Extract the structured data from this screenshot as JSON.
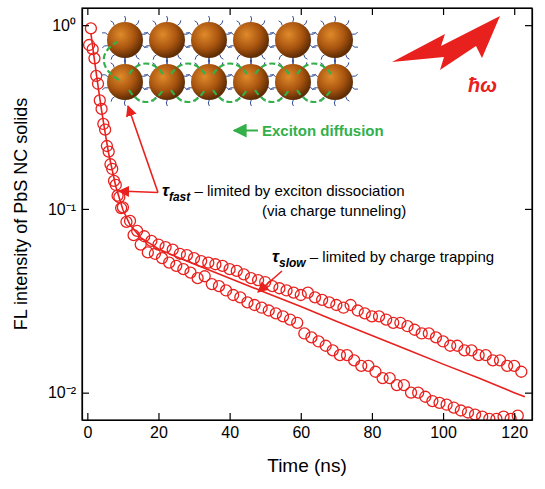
{
  "chart_data": {
    "type": "scatter",
    "x_label": "Time (ns)",
    "y_label": "FL intensity of PbS NC solids",
    "log": "y",
    "grid": false,
    "xlim": [
      -1.5,
      125
    ],
    "ylim": [
      0.0071,
      1.24
    ],
    "xticks": [
      0,
      20,
      40,
      60,
      80,
      100,
      120
    ],
    "yticks": [
      {
        "value": 1,
        "label": "10⁰"
      },
      {
        "value": 0.1,
        "label": "10⁻¹"
      },
      {
        "value": 0.01,
        "label": "10⁻²"
      }
    ],
    "series": [
      {
        "type": "scatter",
        "color": "#e8211e",
        "marker": "circle-open",
        "x": [
          0.5,
          1,
          1.5,
          2,
          2.5,
          3,
          3.5,
          4,
          4.5,
          5,
          5.5,
          6,
          6.5,
          7,
          7.5,
          8,
          8.5,
          9,
          9.5,
          10,
          11,
          12,
          13,
          14,
          15,
          16,
          17,
          18,
          19,
          20,
          21,
          22,
          23,
          24,
          25,
          26,
          27,
          28,
          29,
          30,
          31,
          32,
          33,
          34,
          35,
          36,
          37,
          38,
          39,
          40,
          41,
          42,
          43,
          44,
          45,
          46,
          47,
          48,
          49,
          50,
          51,
          52,
          53,
          54,
          55,
          56,
          57,
          58,
          59,
          60,
          61,
          62,
          63,
          64,
          65,
          66,
          67,
          68,
          69,
          70,
          71,
          72,
          73,
          74,
          75,
          76,
          77,
          78,
          79,
          80,
          81,
          82,
          83,
          84,
          85,
          86,
          87,
          88,
          89,
          90,
          91,
          92,
          93,
          94,
          95,
          96,
          97,
          98,
          99,
          100,
          101,
          102,
          103,
          104,
          105,
          106,
          107,
          108,
          109,
          110,
          111,
          112,
          113,
          114,
          115,
          116,
          117,
          118,
          119,
          120,
          121,
          122
        ],
        "values": [
          0.78,
          0.96,
          0.74,
          0.66,
          0.53,
          0.48,
          0.39,
          0.35,
          0.29,
          0.27,
          0.22,
          0.205,
          0.175,
          0.165,
          0.142,
          0.135,
          0.118,
          0.116,
          0.101,
          0.102,
          0.085,
          0.086,
          0.072,
          0.076,
          0.064,
          0.071,
          0.058,
          0.067,
          0.057,
          0.064,
          0.054,
          0.062,
          0.051,
          0.06,
          0.049,
          0.057,
          0.047,
          0.056,
          0.045,
          0.054,
          0.042,
          0.052,
          0.043,
          0.051,
          0.039,
          0.05,
          0.038,
          0.049,
          0.036,
          0.047,
          0.034,
          0.046,
          0.033,
          0.044,
          0.031,
          0.042,
          0.03,
          0.041,
          0.029,
          0.04,
          0.028,
          0.038,
          0.027,
          0.037,
          0.026,
          0.036,
          0.025,
          0.035,
          0.024,
          0.034,
          0.021,
          0.035,
          0.02,
          0.033,
          0.019,
          0.032,
          0.018,
          0.031,
          0.017,
          0.03,
          0.016,
          0.029,
          0.016,
          0.03,
          0.015,
          0.028,
          0.014,
          0.027,
          0.014,
          0.026,
          0.013,
          0.026,
          0.012,
          0.025,
          0.012,
          0.024,
          0.011,
          0.024,
          0.011,
          0.023,
          0.01,
          0.022,
          0.01,
          0.021,
          0.0095,
          0.021,
          0.009,
          0.02,
          0.0088,
          0.019,
          0.0086,
          0.018,
          0.0083,
          0.018,
          0.008,
          0.017,
          0.0078,
          0.017,
          0.0076,
          0.016,
          0.0074,
          0.016,
          0.0072,
          0.015,
          0.0072,
          0.015,
          0.0074,
          0.014,
          0.0072,
          0.014,
          0.0075,
          0.013
        ]
      },
      {
        "type": "line",
        "color": "#e8211e",
        "line_style": "solid",
        "x": [
          1,
          2,
          3,
          4,
          5,
          6,
          8,
          10,
          12,
          15,
          20,
          25,
          30,
          40,
          50,
          60,
          70,
          80,
          90,
          100,
          110,
          120,
          123
        ],
        "values": [
          0.906,
          0.645,
          0.467,
          0.344,
          0.26,
          0.2,
          0.1325,
          0.099,
          0.082,
          0.0698,
          0.0606,
          0.0549,
          0.0502,
          0.042,
          0.0351,
          0.0294,
          0.0245,
          0.0205,
          0.0171,
          0.0143,
          0.012,
          0.01,
          0.0095
        ]
      }
    ],
    "annotations": [
      {
        "symbol": "τ",
        "sub": "fast",
        "text": " – limited by exciton dissociation"
      },
      {
        "text": "(via charge tunneling)"
      },
      {
        "symbol": "τ",
        "sub": "slow",
        "text": " – limited by charge trapping"
      },
      {
        "text": "Exciton diffusion"
      },
      {
        "text": "ħω"
      }
    ]
  }
}
